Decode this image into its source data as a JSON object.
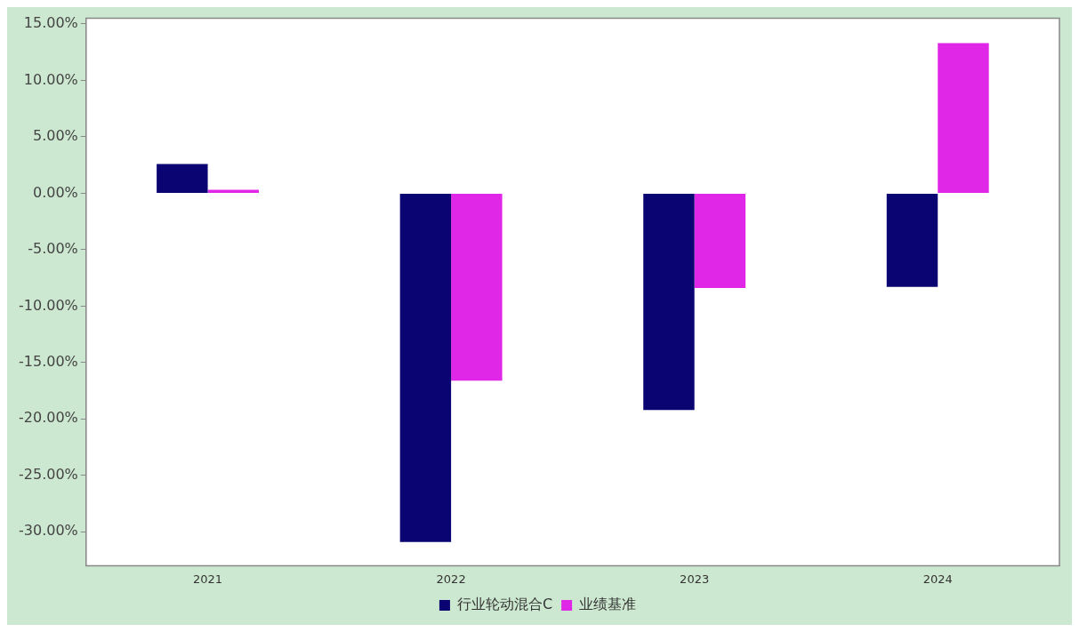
{
  "chart_data": {
    "type": "bar",
    "categories": [
      "2021",
      "2022",
      "2023",
      "2024"
    ],
    "series": [
      {
        "name": "行业轮动混合C",
        "color": "#0a0472",
        "values": [
          2.6,
          -30.9,
          -19.2,
          -8.3
        ]
      },
      {
        "name": "业绩基准",
        "color": "#e026e6",
        "values": [
          0.3,
          -16.6,
          -8.4,
          13.3
        ]
      }
    ],
    "ylim": [
      -33,
      15.5
    ],
    "yticks": [
      {
        "value": -30,
        "label": "-30.00%"
      },
      {
        "value": -25,
        "label": "-25.00%"
      },
      {
        "value": -20,
        "label": "-20.00%"
      },
      {
        "value": -15,
        "label": "-15.00%"
      },
      {
        "value": -10,
        "label": "-10.00%"
      },
      {
        "value": -5,
        "label": "-5.00%"
      },
      {
        "value": 0,
        "label": "0.00%"
      },
      {
        "value": 5,
        "label": "5.00%"
      },
      {
        "value": 10,
        "label": "10.00%"
      },
      {
        "value": 15,
        "label": "15.00%"
      }
    ],
    "grid": false,
    "legend": "bottom"
  }
}
